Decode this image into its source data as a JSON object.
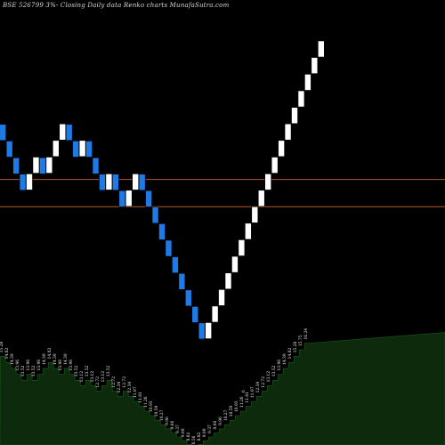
{
  "colors": {
    "background": "#000000",
    "up_brick": "#ffffff",
    "down_brick": "#1e7be6",
    "brick_border": "#000000",
    "reference_line": "#b4582c",
    "volume_fill": "#0d2a0d",
    "volume_edge": "#1a5a1a",
    "label_text": "#e8e8e8"
  },
  "chart_data": {
    "type": "renko",
    "title": "BSE 526799 3%-  Closing Daily data  Renko  charts MunafaSutra.com",
    "brick_size_pct": 3,
    "ylim": [
      8.17,
      16.5
    ],
    "reference_lines": [
      12.67,
      12.05
    ],
    "bricks": [
      {
        "dir": "down",
        "close": 13.61
      },
      {
        "dir": "down",
        "close": 13.2
      },
      {
        "dir": "down",
        "close": 12.8
      },
      {
        "dir": "down",
        "close": 12.42
      },
      {
        "dir": "up",
        "close": 12.8
      },
      {
        "dir": "up",
        "close": 13.2
      },
      {
        "dir": "down",
        "close": 12.8
      },
      {
        "dir": "up",
        "close": 13.2
      },
      {
        "dir": "up",
        "close": 13.61
      },
      {
        "dir": "up",
        "close": 14.03
      },
      {
        "dir": "down",
        "close": 13.61
      },
      {
        "dir": "down",
        "close": 13.2
      },
      {
        "dir": "up",
        "close": 13.61
      },
      {
        "dir": "down",
        "close": 13.2
      },
      {
        "dir": "down",
        "close": 12.8
      },
      {
        "dir": "down",
        "close": 12.42
      },
      {
        "dir": "up",
        "close": 12.8
      },
      {
        "dir": "down",
        "close": 12.42
      },
      {
        "dir": "down",
        "close": 12.05
      },
      {
        "dir": "up",
        "close": 12.42
      },
      {
        "dir": "up",
        "close": 12.8
      },
      {
        "dir": "down",
        "close": 12.42
      },
      {
        "dir": "down",
        "close": 12.05
      },
      {
        "dir": "down",
        "close": 11.69
      },
      {
        "dir": "down",
        "close": 11.34
      },
      {
        "dir": "down",
        "close": 11.0
      },
      {
        "dir": "down",
        "close": 10.67
      },
      {
        "dir": "down",
        "close": 10.35
      },
      {
        "dir": "down",
        "close": 10.04
      },
      {
        "dir": "down",
        "close": 9.74
      },
      {
        "dir": "down",
        "close": 9.45
      },
      {
        "dir": "up",
        "close": 9.74
      },
      {
        "dir": "up",
        "close": 10.04
      },
      {
        "dir": "up",
        "close": 10.35
      },
      {
        "dir": "up",
        "close": 10.67
      },
      {
        "dir": "up",
        "close": 11.0
      },
      {
        "dir": "up",
        "close": 11.34
      },
      {
        "dir": "up",
        "close": 11.69
      },
      {
        "dir": "up",
        "close": 12.05
      },
      {
        "dir": "up",
        "close": 12.42
      },
      {
        "dir": "up",
        "close": 12.8
      },
      {
        "dir": "up",
        "close": 13.2
      },
      {
        "dir": "up",
        "close": 13.61
      },
      {
        "dir": "up",
        "close": 14.03
      },
      {
        "dir": "up",
        "close": 14.46
      },
      {
        "dir": "up",
        "close": 14.91
      },
      {
        "dir": "up",
        "close": 15.37
      },
      {
        "dir": "up",
        "close": 15.85
      },
      {
        "dir": "up",
        "close": 16.34
      }
    ],
    "volume_labels": [
      "15.28",
      "14.82",
      "14.39",
      "13.96",
      "13.52",
      "13.96",
      "13.52",
      "13.96",
      "14.39",
      "14.82",
      "14.39",
      "13.96",
      "14.39",
      "13.96",
      "13.52",
      "13.12",
      "13.52",
      "13.12",
      "12.72",
      "13.12",
      "13.52",
      "12.72",
      "12.34",
      "12.72",
      "12.34",
      "11.97",
      "11.61",
      "11.26",
      "10.93",
      "10.59",
      "10.27",
      "9.96",
      "9.66",
      "9.37",
      "9.09",
      "8.82",
      "8.56",
      "8.82",
      "9.09",
      "9.37",
      "9.66",
      "9.96",
      "10.27",
      "10.59",
      "10.93",
      "11.26",
      "11.61",
      "11.97",
      "12.34",
      "12.72",
      "13.12",
      "13.52",
      "13.96",
      "14.39",
      "14.82",
      "15.28",
      "15.75",
      "16.24"
    ],
    "volume_label_count": 58,
    "extra_mark": "6"
  }
}
